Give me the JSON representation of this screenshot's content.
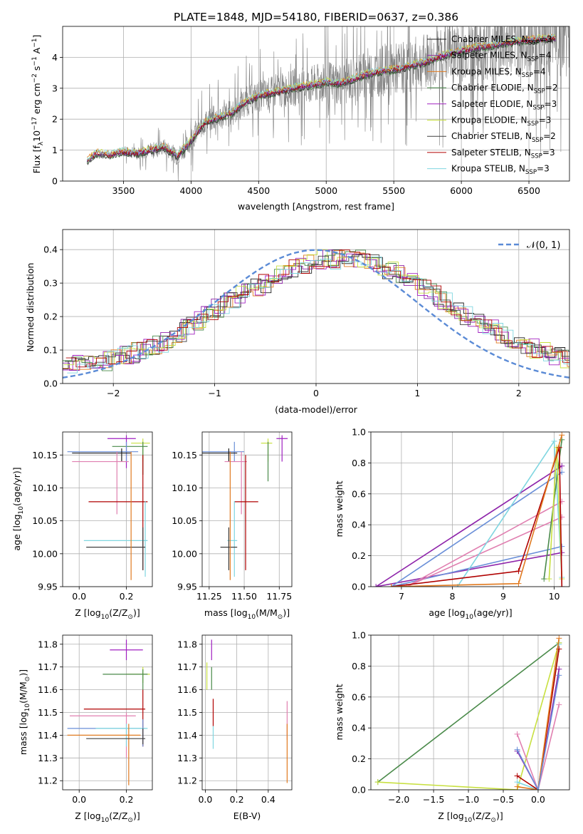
{
  "figure_title": "PLATE=1848, MJD=54180, FIBERID=0637, z=0.386",
  "colors": {
    "Chabrier MILES": "#1f1f1f",
    "Salpeter MILES": "#8e24aa",
    "Kroupa MILES": "#e07a20",
    "Chabrier ELODIE": "#4a8a4a",
    "Salpeter ELODIE": "#a020c0",
    "Kroupa ELODIE": "#c8e040",
    "Chabrier STELIB": "#404040",
    "Salpeter STELIB": "#b00000",
    "Kroupa STELIB": "#7fd6e0",
    "data": "#808080",
    "gaussian": "#5b8bd6",
    "c_blue": "#6a8fd8",
    "c_pink": "#e07fb0"
  },
  "chart_data": [
    {
      "type": "line",
      "title": "PLATE=1848, MJD=54180, FIBERID=0637, z=0.386",
      "xlabel": "wavelength [Angstrom, rest frame]",
      "ylabel": "Flux [f_λ 10^-17 erg cm^-2 s^-1 A^-1]",
      "xlim": [
        3050,
        6800
      ],
      "ylim": [
        0,
        5
      ],
      "xticks": [
        3500,
        4000,
        4500,
        5000,
        5500,
        6000,
        6500
      ],
      "yticks": [
        0,
        1,
        2,
        3,
        4
      ],
      "legend_position": "top-right",
      "legend": [
        "Chabrier MILES, N_SSP=3",
        "Salpeter MILES, N_SSP=4",
        "Kroupa MILES, N_SSP=4",
        "Chabrier ELODIE, N_SSP=2",
        "Salpeter ELODIE, N_SSP=3",
        "Kroupa ELODIE, N_SSP=3",
        "Chabrier STELIB, N_SSP=2",
        "Salpeter STELIB, N_SSP=3",
        "Kroupa STELIB, N_SSP=3"
      ],
      "model_trend_x": [
        3230,
        3300,
        3400,
        3500,
        3600,
        3700,
        3800,
        3900,
        4000,
        4100,
        4200,
        4300,
        4400,
        4500,
        4600,
        4700,
        4800,
        4900,
        5000,
        5100,
        5200,
        5300,
        5400,
        5500,
        5600,
        5700,
        5800,
        5900,
        6000,
        6100,
        6200,
        6300,
        6400,
        6500,
        6600,
        6700
      ],
      "model_trend_y": [
        0.65,
        0.9,
        0.85,
        0.95,
        0.9,
        1.0,
        1.1,
        0.8,
        1.3,
        1.9,
        2.05,
        2.2,
        2.55,
        2.75,
        2.85,
        2.95,
        3.05,
        3.1,
        3.2,
        3.15,
        3.3,
        3.45,
        3.55,
        3.6,
        3.7,
        3.8,
        3.95,
        4.1,
        4.2,
        4.3,
        4.35,
        4.45,
        4.5,
        4.55,
        4.6,
        4.6
      ],
      "data_xrange": [
        3500,
        6800
      ]
    },
    {
      "type": "line",
      "xlabel": "(data-model)/error",
      "ylabel": "Normed distribution",
      "xlim": [
        -2.5,
        2.5
      ],
      "ylim": [
        0,
        0.46
      ],
      "xticks": [
        -2,
        -1,
        0,
        1,
        2
      ],
      "yticks": [
        0.0,
        0.1,
        0.2,
        0.3,
        0.4
      ],
      "legend": [
        "𝒩(0, 1)"
      ],
      "legend_position": "top-right",
      "gaussian": {
        "mean": 0,
        "sigma": 1
      },
      "histogram_trend": {
        "x": [
          -2.5,
          -2.0,
          -1.5,
          -1.0,
          -0.5,
          0.0,
          0.5,
          1.0,
          1.5,
          2.0,
          2.5
        ],
        "y": [
          0.05,
          0.07,
          0.12,
          0.22,
          0.3,
          0.37,
          0.37,
          0.3,
          0.2,
          0.12,
          0.07
        ]
      }
    },
    {
      "type": "scatter",
      "xlabel": "Z [log10(Z/Z⊙)]",
      "ylabel": "age [log10(age/yr)]",
      "xlim": [
        -0.07,
        0.31
      ],
      "ylim": [
        9.95,
        10.185
      ],
      "xticks": [
        0.0,
        0.2
      ],
      "yticks": [
        9.95,
        10.0,
        10.05,
        10.1,
        10.15
      ],
      "errorbars": [
        {
          "c": "Salpeter ELODIE",
          "x": 0.2,
          "y": 10.175,
          "xe": [
            0.12,
            0.24
          ],
          "ye": [
            10.13,
            10.18
          ]
        },
        {
          "c": "Kroupa ELODIE",
          "x": 0.27,
          "y": 10.168,
          "xe": [
            0.22,
            0.3
          ],
          "ye": [
            10.14,
            10.175
          ]
        },
        {
          "c": "Chabrier ELODIE",
          "x": 0.27,
          "y": 10.163,
          "xe": [
            0.14,
            0.29
          ],
          "ye": [
            10.12,
            10.17
          ]
        },
        {
          "c": "c_blue",
          "x": 0.2,
          "y": 10.155,
          "xe": [
            -0.05,
            0.25
          ],
          "ye": [
            10.14,
            10.17
          ]
        },
        {
          "c": "Chabrier MILES",
          "x": 0.18,
          "y": 10.153,
          "xe": [
            -0.03,
            0.22
          ],
          "ye": [
            10.14,
            10.16
          ]
        },
        {
          "c": "c_pink",
          "x": 0.16,
          "y": 10.14,
          "xe": [
            -0.03,
            0.21
          ],
          "ye": [
            10.06,
            10.155
          ]
        },
        {
          "c": "Salpeter STELIB",
          "x": 0.27,
          "y": 10.079,
          "xe": [
            0.04,
            0.29
          ],
          "ye": [
            9.975,
            10.15
          ]
        },
        {
          "c": "Kroupa STELIB",
          "x": 0.28,
          "y": 10.02,
          "xe": [
            0.02,
            0.29
          ],
          "ye": [
            9.965,
            10.08
          ]
        },
        {
          "c": "Chabrier STELIB",
          "x": 0.27,
          "y": 10.01,
          "xe": [
            0.03,
            0.28
          ],
          "ye": [
            9.975,
            10.04
          ]
        },
        {
          "c": "Kroupa MILES",
          "x": 0.22,
          "y": 10.1,
          "xe": [
            0.22,
            0.22
          ],
          "ye": [
            9.96,
            10.155
          ]
        }
      ]
    },
    {
      "type": "scatter",
      "xlabel": "mass [log10(M/M⊙)]",
      "xlim": [
        11.2,
        11.84
      ],
      "ylim": [
        9.95,
        10.185
      ],
      "xticks": [
        11.25,
        11.5,
        11.75
      ],
      "yticks": [
        9.95,
        10.0,
        10.05,
        10.1,
        10.15
      ],
      "errorbars": [
        {
          "c": "Salpeter ELODIE",
          "x": 11.77,
          "y": 10.175,
          "xe": [
            11.73,
            11.81
          ],
          "ye": [
            10.14,
            10.18
          ]
        },
        {
          "c": "Kroupa ELODIE",
          "x": 11.67,
          "y": 10.168,
          "xe": [
            11.62,
            11.7
          ],
          "ye": [
            10.14,
            10.175
          ]
        },
        {
          "c": "Chabrier ELODIE",
          "x": 11.67,
          "y": 10.163,
          "xe": [
            11.67,
            11.67
          ],
          "ye": [
            10.11,
            10.17
          ]
        },
        {
          "c": "c_blue",
          "x": 11.43,
          "y": 10.155,
          "xe": [
            11.2,
            11.5
          ],
          "ye": [
            10.14,
            10.17
          ]
        },
        {
          "c": "Chabrier MILES",
          "x": 11.39,
          "y": 10.153,
          "xe": [
            11.2,
            11.45
          ],
          "ye": [
            10.14,
            10.16
          ]
        },
        {
          "c": "c_pink",
          "x": 11.48,
          "y": 10.14,
          "xe": [
            11.36,
            11.52
          ],
          "ye": [
            10.06,
            10.155
          ]
        },
        {
          "c": "Salpeter STELIB",
          "x": 11.51,
          "y": 10.079,
          "xe": [
            11.43,
            11.6
          ],
          "ye": [
            9.975,
            10.15
          ]
        },
        {
          "c": "Kroupa STELIB",
          "x": 11.43,
          "y": 10.02,
          "xe": [
            11.38,
            11.45
          ],
          "ye": [
            9.965,
            10.08
          ]
        },
        {
          "c": "Chabrier STELIB",
          "x": 11.39,
          "y": 10.01,
          "xe": [
            11.33,
            11.45
          ],
          "ye": [
            9.975,
            10.04
          ]
        },
        {
          "c": "Kroupa MILES",
          "x": 11.4,
          "y": 10.1,
          "xe": [
            11.4,
            11.4
          ],
          "ye": [
            9.96,
            10.155
          ]
        }
      ]
    },
    {
      "type": "line",
      "xlabel": "age [log10(age/yr)]",
      "ylabel": "mass weight",
      "xlim": [
        6.4,
        10.3
      ],
      "ylim": [
        0,
        1
      ],
      "xticks": [
        7,
        8,
        9,
        10
      ],
      "yticks": [
        0.0,
        0.2,
        0.4,
        0.6,
        0.8,
        1.0
      ],
      "series": [
        {
          "c": "Salpeter MILES",
          "x": [
            10.15,
            6.5,
            10.15
          ],
          "y": [
            0.78,
            0.0,
            0.22
          ]
        },
        {
          "c": "c_blue",
          "x": [
            10.15,
            6.8,
            10.15
          ],
          "y": [
            0.74,
            0.0,
            0.26
          ]
        },
        {
          "c": "c_pink",
          "x": [
            10.15,
            7.1,
            10.15
          ],
          "y": [
            0.55,
            0.0,
            0.45
          ]
        },
        {
          "c": "Kroupa STELIB",
          "x": [
            8.1,
            10.0,
            10.15
          ],
          "y": [
            0.0,
            0.94,
            0.06
          ]
        },
        {
          "c": "Chabrier ELODIE",
          "x": [
            9.8,
            10.15
          ],
          "y": [
            0.05,
            0.95
          ]
        },
        {
          "c": "Kroupa ELODIE",
          "x": [
            9.9,
            10.05,
            10.15
          ],
          "y": [
            0.05,
            0.9,
            0.05
          ]
        },
        {
          "c": "Salpeter STELIB",
          "x": [
            6.8,
            9.3,
            10.1,
            10.15
          ],
          "y": [
            0.0,
            0.1,
            0.9,
            0.0
          ]
        },
        {
          "c": "Kroupa MILES",
          "x": [
            6.8,
            9.3,
            10.15
          ],
          "y": [
            0.0,
            0.02,
            0.98
          ]
        }
      ]
    },
    {
      "type": "scatter",
      "xlabel": "Z [log10(Z/Z⊙)]",
      "ylabel": "mass [log10(M/M⊙)]",
      "xlim": [
        -0.07,
        0.31
      ],
      "ylim": [
        11.16,
        11.84
      ],
      "xticks": [
        0.0,
        0.2
      ],
      "yticks": [
        11.2,
        11.3,
        11.4,
        11.5,
        11.6,
        11.7,
        11.8
      ],
      "errorbars": [
        {
          "c": "Salpeter ELODIE",
          "x": 0.2,
          "y": 11.775,
          "xe": [
            0.13,
            0.27
          ],
          "ye": [
            11.73,
            11.82
          ]
        },
        {
          "c": "Kroupa ELODIE",
          "x": 0.27,
          "y": 11.668,
          "xe": [
            0.2,
            0.3
          ],
          "ye": [
            11.63,
            11.7
          ]
        },
        {
          "c": "Chabrier ELODIE",
          "x": 0.27,
          "y": 11.668,
          "xe": [
            0.1,
            0.29
          ],
          "ye": [
            11.6,
            11.69
          ]
        },
        {
          "c": "Salpeter STELIB",
          "x": 0.27,
          "y": 11.515,
          "xe": [
            0.02,
            0.28
          ],
          "ye": [
            11.35,
            11.6
          ]
        },
        {
          "c": "c_pink",
          "x": 0.2,
          "y": 11.485,
          "xe": [
            -0.04,
            0.24
          ],
          "ye": [
            11.3,
            11.5
          ]
        },
        {
          "c": "c_blue",
          "x": 0.27,
          "y": 11.43,
          "xe": [
            -0.05,
            0.28
          ],
          "ye": [
            11.35,
            11.47
          ]
        },
        {
          "c": "Kroupa STELIB",
          "x": 0.2,
          "y": 11.43,
          "xe": [
            0.07,
            0.29
          ],
          "ye": [
            11.35,
            11.45
          ]
        },
        {
          "c": "Kroupa MILES",
          "x": 0.21,
          "y": 11.4,
          "xe": [
            -0.05,
            0.26
          ],
          "ye": [
            11.18,
            11.45
          ]
        },
        {
          "c": "Chabrier STELIB",
          "x": 0.27,
          "y": 11.385,
          "xe": [
            0.03,
            0.28
          ],
          "ye": [
            11.36,
            11.43
          ]
        }
      ]
    },
    {
      "type": "scatter",
      "xlabel": "E(B-V)",
      "xlim": [
        -0.02,
        0.55
      ],
      "ylim": [
        11.16,
        11.84
      ],
      "xticks": [
        0.0,
        0.2,
        0.4
      ],
      "yticks": [
        11.2,
        11.3,
        11.4,
        11.5,
        11.6,
        11.7,
        11.8
      ],
      "errorbars": [
        {
          "c": "Salpeter ELODIE",
          "x": 0.04,
          "y": 11.775,
          "xe": [
            0.04,
            0.04
          ],
          "ye": [
            11.73,
            11.82
          ]
        },
        {
          "c": "Kroupa ELODIE",
          "x": 0.01,
          "y": 11.66,
          "xe": [
            0.01,
            0.01
          ],
          "ye": [
            11.6,
            11.72
          ]
        },
        {
          "c": "Chabrier ELODIE",
          "x": 0.04,
          "y": 11.66,
          "xe": [
            0.04,
            0.04
          ],
          "ye": [
            11.6,
            11.7
          ]
        },
        {
          "c": "Salpeter STELIB",
          "x": 0.05,
          "y": 11.5,
          "xe": [
            0.05,
            0.05
          ],
          "ye": [
            11.44,
            11.56
          ]
        },
        {
          "c": "Kroupa STELIB",
          "x": 0.05,
          "y": 11.4,
          "xe": [
            0.05,
            0.05
          ],
          "ye": [
            11.34,
            11.44
          ]
        },
        {
          "c": "c_pink",
          "x": 0.52,
          "y": 11.48,
          "xe": [
            0.52,
            0.52
          ],
          "ye": [
            11.38,
            11.55
          ]
        },
        {
          "c": "Kroupa MILES",
          "x": 0.52,
          "y": 11.35,
          "xe": [
            0.52,
            0.52
          ],
          "ye": [
            11.19,
            11.45
          ]
        }
      ]
    },
    {
      "type": "line",
      "xlabel": "Z [log10(Z/Z⊙)]",
      "ylabel": "mass weight",
      "xlim": [
        -2.4,
        0.45
      ],
      "ylim": [
        0,
        1
      ],
      "xticks": [
        -2.0,
        -1.5,
        -1.0,
        -0.5,
        0.0
      ],
      "yticks": [
        0.0,
        0.2,
        0.4,
        0.6,
        0.8,
        1.0
      ],
      "series": [
        {
          "c": "Chabrier ELODIE",
          "x": [
            -2.3,
            0.3
          ],
          "y": [
            0.05,
            0.95
          ]
        },
        {
          "c": "Kroupa ELODIE",
          "x": [
            -2.3,
            -0.3,
            0.3
          ],
          "y": [
            0.05,
            0.0,
            0.95
          ]
        },
        {
          "c": "Salpeter MILES",
          "x": [
            -0.3,
            0.0,
            0.3
          ],
          "y": [
            0.25,
            0.0,
            0.78
          ]
        },
        {
          "c": "c_pink",
          "x": [
            -0.3,
            0.0,
            0.3
          ],
          "y": [
            0.36,
            0.0,
            0.55
          ]
        },
        {
          "c": "Kroupa STELIB",
          "x": [
            -0.3,
            0.0,
            0.3
          ],
          "y": [
            0.05,
            0.0,
            0.94
          ]
        },
        {
          "c": "Salpeter STELIB",
          "x": [
            -0.3,
            0.0,
            0.3
          ],
          "y": [
            0.09,
            0.0,
            0.91
          ]
        },
        {
          "c": "Kroupa MILES",
          "x": [
            -0.3,
            0.0,
            0.3
          ],
          "y": [
            0.02,
            0.0,
            0.98
          ]
        },
        {
          "c": "c_blue",
          "x": [
            -0.3,
            0.0,
            0.3
          ],
          "y": [
            0.26,
            0.0,
            0.74
          ]
        }
      ]
    }
  ]
}
